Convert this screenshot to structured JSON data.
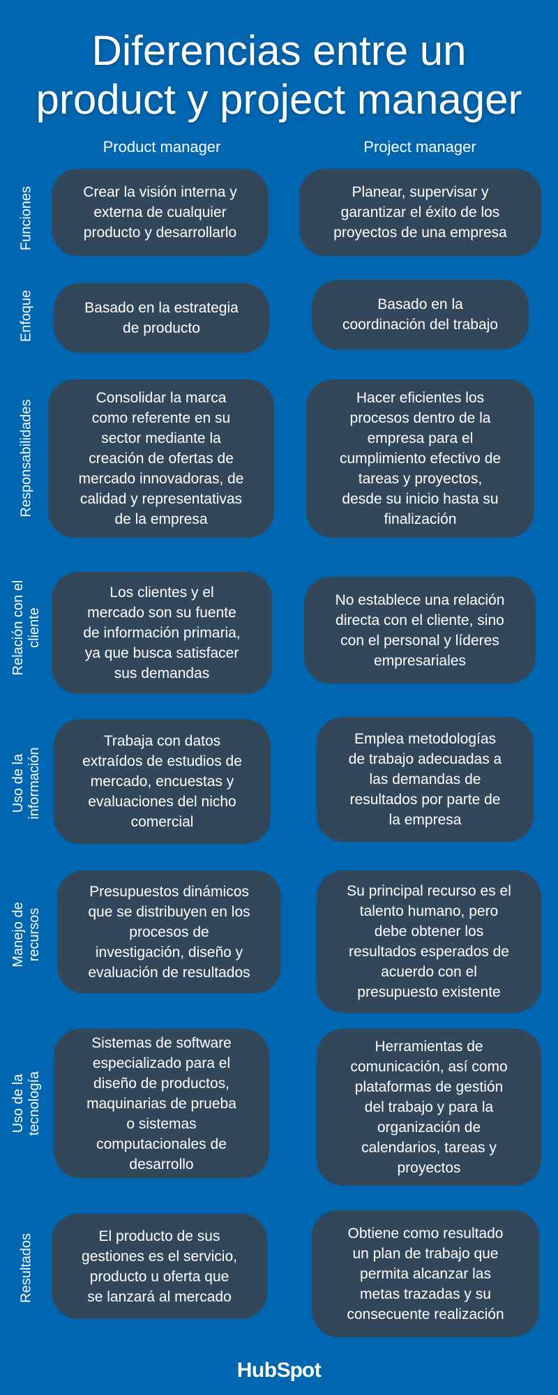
{
  "title": [
    "Diferencias entre un",
    "product y project manager"
  ],
  "columns": {
    "product": "Product manager",
    "project": "Project manager"
  },
  "rows": [
    {
      "label": [
        "Funciones"
      ],
      "product": [
        "Crear la visión interna y",
        "externa de cualquier",
        "producto y desarrollarlo"
      ],
      "project": [
        "Planear, supervisar y",
        "garantizar el éxito de los",
        "proyectos de una empresa"
      ]
    },
    {
      "label": [
        "Enfoque"
      ],
      "product": [
        "Basado en la estrategia",
        "de producto"
      ],
      "project": [
        "Basado en la",
        "coordinación del trabajo"
      ]
    },
    {
      "label": [
        "Responsabilidades"
      ],
      "product": [
        "Consolidar la marca",
        "como referente en su",
        "sector mediante la",
        "creación de ofertas de",
        "mercado innovadoras, de",
        "calidad y representativas",
        "de la empresa"
      ],
      "project": [
        "Hacer eficientes los",
        "procesos dentro de la",
        "empresa para el",
        "cumplimiento efectivo de",
        "tareas y proyectos,",
        "desde su inicio hasta su",
        "finalización"
      ]
    },
    {
      "label": [
        "Relación con el",
        "cliente"
      ],
      "product": [
        "Los clientes y el",
        "mercado son su fuente",
        "de información primaria,",
        "ya que busca satisfacer",
        "sus demandas"
      ],
      "project": [
        "No establece una relación",
        "directa con el cliente, sino",
        "con el personal y líderes",
        "empresariales"
      ]
    },
    {
      "label": [
        "Uso de la",
        "información"
      ],
      "product": [
        "Trabaja con datos",
        "extraídos de estudios de",
        "mercado, encuestas y",
        "evaluaciones del nicho",
        "comercial"
      ],
      "project": [
        "Emplea metodologías",
        "de trabajo adecuadas a",
        "las demandas de",
        "resultados por parte de",
        "la empresa"
      ]
    },
    {
      "label": [
        "Manejo de",
        "recursos"
      ],
      "product": [
        "Presupuestos dinámicos",
        "que se distribuyen en los",
        "procesos de",
        "investigación, diseño y",
        "evaluación de resultados"
      ],
      "project": [
        "Su principal recurso es el",
        "talento humano, pero",
        "debe obtener los",
        "resultados esperados de",
        "acuerdo con el",
        "presupuesto existente"
      ]
    },
    {
      "label": [
        "Uso de la",
        "tecnología"
      ],
      "product": [
        "Sistemas de software",
        "especializado para el",
        "diseño de productos,",
        "maquinarias de prueba",
        "o sistemas",
        "computacionales de",
        "desarrollo"
      ],
      "project": [
        "Herramientas de",
        "comunicación, así como",
        "plataformas de gestión",
        "del trabajo y para la",
        "organización de",
        "calendarios, tareas y",
        "proyectos"
      ]
    },
    {
      "label": [
        "Resultados"
      ],
      "product": [
        "El producto de sus",
        "gestiones es el servicio,",
        "producto u oferta que",
        "se lanzará al mercado"
      ],
      "project": [
        "Obtiene como resultado",
        "un plan de trabajo que",
        "permita alcanzar las",
        "metas trazadas y su",
        "consecuente realización"
      ]
    }
  ],
  "logo": "HubSpot",
  "colors": {
    "background": "#0166b0",
    "box": "#33475b",
    "text": "#ffffff"
  }
}
